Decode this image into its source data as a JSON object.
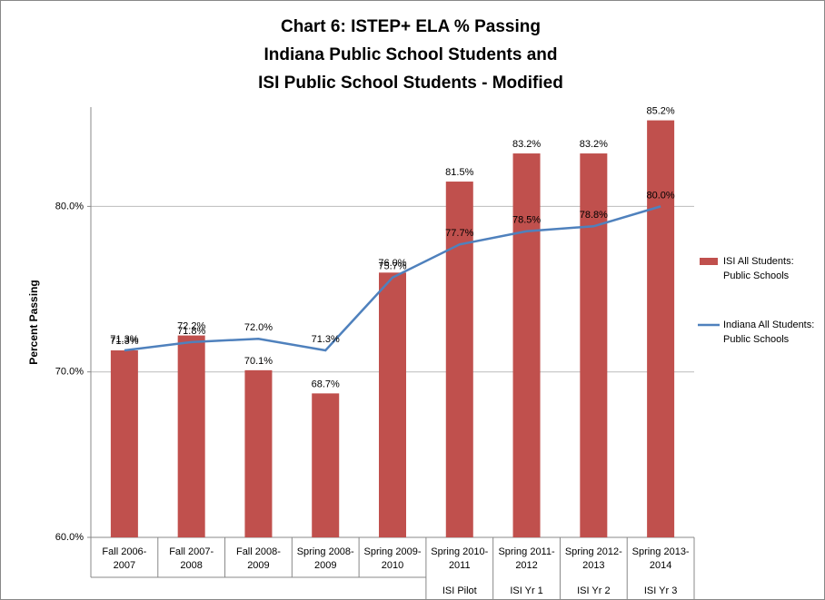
{
  "chart_data": {
    "type": "bar-line",
    "title": [
      "Chart 6: ISTEP+ ELA % Passing",
      "Indiana Public School Students and",
      "ISI Public School Students - Modified"
    ],
    "y_label": "Percent Passing",
    "categories": [
      [
        "Fall 2006-",
        "2007"
      ],
      [
        "Fall 2007-",
        "2008"
      ],
      [
        "Fall 2008-",
        "2009"
      ],
      [
        "Spring 2008-",
        "2009"
      ],
      [
        "Spring 2009-",
        "2010"
      ],
      [
        "Spring 2010-",
        "2011"
      ],
      [
        "Spring 2011-",
        "2012"
      ],
      [
        "Spring 2012-",
        "2013"
      ],
      [
        "Spring 2013-",
        "2014"
      ]
    ],
    "groups": [
      null,
      null,
      null,
      null,
      null,
      "ISI Pilot",
      "ISI Yr 1",
      "ISI Yr 2",
      "ISI Yr 3"
    ],
    "series": [
      {
        "name": [
          "ISI All Students:",
          "Public Schools"
        ],
        "kind": "bar",
        "color": "#c0504d",
        "values": [
          71.3,
          72.2,
          70.1,
          68.7,
          76.0,
          81.5,
          83.2,
          83.2,
          85.2
        ],
        "value_labels": [
          "71.3%",
          "72.2%",
          "70.1%",
          "68.7%",
          "76.0%",
          "81.5%",
          "83.2%",
          "83.2%",
          "85.2%"
        ]
      },
      {
        "name": [
          "Indiana All Students:",
          "Public Schools"
        ],
        "kind": "line",
        "color": "#4f81bd",
        "values": [
          71.3,
          71.8,
          72.0,
          71.3,
          75.7,
          77.7,
          78.5,
          78.8,
          80.0
        ],
        "value_labels": [
          "71.3%",
          "71.8%",
          "72.0%",
          "71.3%",
          "75.7%",
          "77.7%",
          "78.5%",
          "78.8%",
          "80.0%"
        ]
      }
    ],
    "ylim": [
      60,
      86
    ],
    "yticks": [
      {
        "value": 60,
        "label": "60.0%"
      },
      {
        "value": 70,
        "label": "70.0%"
      },
      {
        "value": 80,
        "label": "80.0%"
      }
    ],
    "grid": true,
    "legend": "right"
  }
}
